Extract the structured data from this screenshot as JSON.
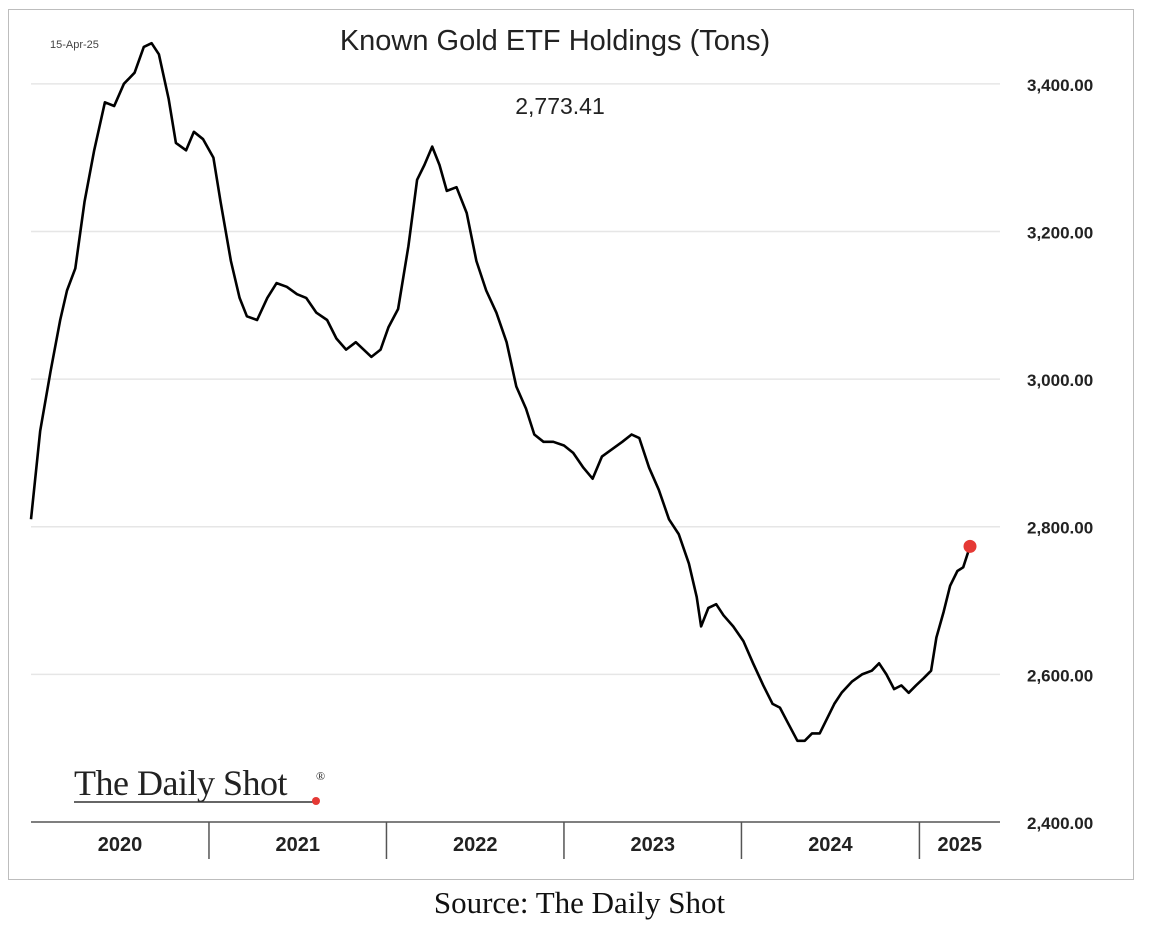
{
  "source_caption": "Source: The Daily Shot",
  "logo": {
    "text": "The Daily Shot",
    "registered_mark": "®",
    "dot_color": "#e53935"
  },
  "colors": {
    "line": "#000000",
    "endpoint": "#e53935",
    "grid": "#e6e6e6"
  },
  "chart_data": {
    "type": "line",
    "title": "Known Gold ETF Holdings (Tons)",
    "date_label": "15-Apr-25",
    "latest_value_label": "2,773.41",
    "y_axis_side": "right",
    "ylim": [
      2400,
      3500
    ],
    "y_ticks": [
      2400,
      2600,
      2800,
      3000,
      3200,
      3400
    ],
    "y_tick_labels": [
      "2,400.00",
      "2,600.00",
      "2,800.00",
      "3,000.00",
      "3,200.00",
      "3,400.00"
    ],
    "x_domain": [
      "2020-01-01",
      "2025-04-15"
    ],
    "x_categories": [
      "2020",
      "2021",
      "2022",
      "2023",
      "2024",
      "2025"
    ],
    "grid": true,
    "endpoint_marker": true,
    "series": [
      {
        "points": [
          [
            "2020-01-01",
            2810
          ],
          [
            "2020-01-20",
            2930
          ],
          [
            "2020-02-10",
            3010
          ],
          [
            "2020-03-01",
            3080
          ],
          [
            "2020-03-15",
            3120
          ],
          [
            "2020-04-01",
            3150
          ],
          [
            "2020-04-20",
            3240
          ],
          [
            "2020-05-10",
            3310
          ],
          [
            "2020-06-01",
            3375
          ],
          [
            "2020-06-20",
            3370
          ],
          [
            "2020-07-10",
            3400
          ],
          [
            "2020-08-01",
            3415
          ],
          [
            "2020-08-20",
            3450
          ],
          [
            "2020-09-05",
            3455
          ],
          [
            "2020-09-20",
            3440
          ],
          [
            "2020-10-10",
            3380
          ],
          [
            "2020-10-25",
            3320
          ],
          [
            "2020-11-15",
            3310
          ],
          [
            "2020-12-01",
            3335
          ],
          [
            "2020-12-20",
            3325
          ],
          [
            "2021-01-10",
            3300
          ],
          [
            "2021-01-25",
            3240
          ],
          [
            "2021-02-15",
            3160
          ],
          [
            "2021-03-05",
            3110
          ],
          [
            "2021-03-20",
            3085
          ],
          [
            "2021-04-10",
            3080
          ],
          [
            "2021-05-01",
            3110
          ],
          [
            "2021-05-20",
            3130
          ],
          [
            "2021-06-10",
            3125
          ],
          [
            "2021-07-01",
            3115
          ],
          [
            "2021-07-20",
            3110
          ],
          [
            "2021-08-10",
            3090
          ],
          [
            "2021-09-01",
            3080
          ],
          [
            "2021-09-20",
            3055
          ],
          [
            "2021-10-10",
            3040
          ],
          [
            "2021-10-30",
            3050
          ],
          [
            "2021-11-15",
            3040
          ],
          [
            "2021-12-01",
            3030
          ],
          [
            "2021-12-20",
            3040
          ],
          [
            "2022-01-05",
            3070
          ],
          [
            "2022-01-25",
            3095
          ],
          [
            "2022-02-15",
            3180
          ],
          [
            "2022-03-05",
            3270
          ],
          [
            "2022-03-20",
            3290
          ],
          [
            "2022-04-05",
            3315
          ],
          [
            "2022-04-20",
            3290
          ],
          [
            "2022-05-05",
            3255
          ],
          [
            "2022-05-25",
            3260
          ],
          [
            "2022-06-15",
            3225
          ],
          [
            "2022-07-05",
            3160
          ],
          [
            "2022-07-25",
            3120
          ],
          [
            "2022-08-15",
            3090
          ],
          [
            "2022-09-05",
            3050
          ],
          [
            "2022-09-25",
            2990
          ],
          [
            "2022-10-15",
            2960
          ],
          [
            "2022-11-01",
            2925
          ],
          [
            "2022-11-20",
            2915
          ],
          [
            "2022-12-10",
            2915
          ],
          [
            "2023-01-01",
            2910
          ],
          [
            "2023-01-20",
            2900
          ],
          [
            "2023-02-10",
            2880
          ],
          [
            "2023-03-01",
            2865
          ],
          [
            "2023-03-20",
            2895
          ],
          [
            "2023-04-10",
            2905
          ],
          [
            "2023-05-01",
            2915
          ],
          [
            "2023-05-20",
            2925
          ],
          [
            "2023-06-05",
            2920
          ],
          [
            "2023-06-25",
            2880
          ],
          [
            "2023-07-15",
            2850
          ],
          [
            "2023-08-05",
            2810
          ],
          [
            "2023-08-25",
            2790
          ],
          [
            "2023-09-15",
            2750
          ],
          [
            "2023-10-01",
            2705
          ],
          [
            "2023-10-10",
            2665
          ],
          [
            "2023-10-25",
            2690
          ],
          [
            "2023-11-10",
            2695
          ],
          [
            "2023-11-25",
            2680
          ],
          [
            "2023-12-15",
            2665
          ],
          [
            "2024-01-05",
            2645
          ],
          [
            "2024-01-25",
            2615
          ],
          [
            "2024-02-15",
            2585
          ],
          [
            "2024-03-05",
            2560
          ],
          [
            "2024-03-20",
            2555
          ],
          [
            "2024-04-05",
            2535
          ],
          [
            "2024-04-25",
            2510
          ],
          [
            "2024-05-10",
            2510
          ],
          [
            "2024-05-25",
            2520
          ],
          [
            "2024-06-10",
            2520
          ],
          [
            "2024-06-25",
            2540
          ],
          [
            "2024-07-10",
            2560
          ],
          [
            "2024-07-25",
            2575
          ],
          [
            "2024-08-15",
            2590
          ],
          [
            "2024-09-05",
            2600
          ],
          [
            "2024-09-25",
            2605
          ],
          [
            "2024-10-10",
            2615
          ],
          [
            "2024-10-25",
            2600
          ],
          [
            "2024-11-10",
            2580
          ],
          [
            "2024-11-25",
            2585
          ],
          [
            "2024-12-10",
            2575
          ],
          [
            "2024-12-25",
            2585
          ],
          [
            "2025-01-10",
            2595
          ],
          [
            "2025-01-25",
            2605
          ],
          [
            "2025-02-05",
            2650
          ],
          [
            "2025-02-20",
            2685
          ],
          [
            "2025-03-05",
            2720
          ],
          [
            "2025-03-20",
            2740
          ],
          [
            "2025-04-01",
            2745
          ],
          [
            "2025-04-15",
            2773.41
          ]
        ]
      }
    ]
  }
}
